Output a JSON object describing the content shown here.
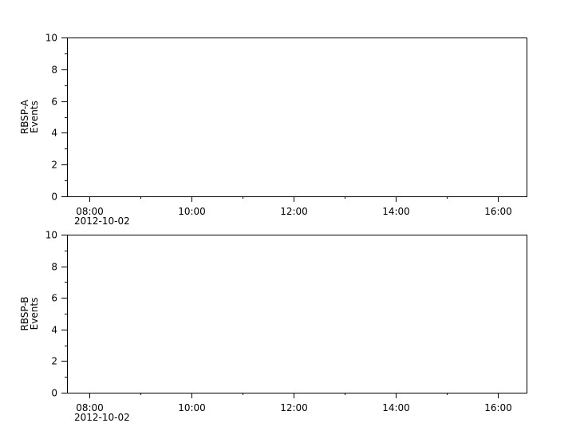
{
  "chart_data": [
    {
      "type": "line",
      "ylabel": [
        "RBSP-A",
        "Events"
      ],
      "ylim": [
        0,
        10
      ],
      "yticks": [
        0,
        2,
        4,
        6,
        8,
        10
      ],
      "xlim": [
        "07:34",
        "16:34"
      ],
      "xticks": [
        "08:00",
        "10:00",
        "12:00",
        "14:00",
        "16:00"
      ],
      "date_label": "2012-10-02",
      "series": [],
      "grid": false
    },
    {
      "type": "line",
      "ylabel": [
        "RBSP-B",
        "Events"
      ],
      "ylim": [
        0,
        10
      ],
      "yticks": [
        0,
        2,
        4,
        6,
        8,
        10
      ],
      "xlim": [
        "07:34",
        "16:34"
      ],
      "xticks": [
        "08:00",
        "10:00",
        "12:00",
        "14:00",
        "16:00"
      ],
      "date_label": "2012-10-02",
      "series": [],
      "grid": false
    }
  ]
}
